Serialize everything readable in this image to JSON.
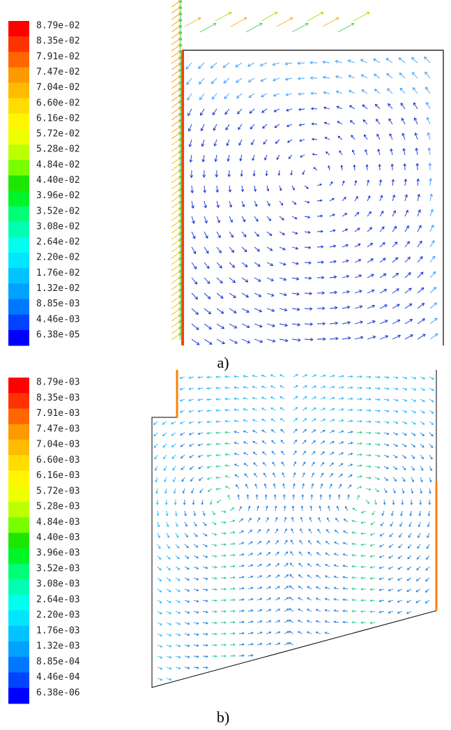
{
  "colorbar_colors": [
    "hsl(0,100%,50%)",
    "hsl(12,100%,50%)",
    "hsl(24,100%,50%)",
    "hsl(36,100%,50%)",
    "hsl(44,100%,50%)",
    "hsl(52,100%,50%)",
    "hsl(58,100%,50%)",
    "hsl(64,100%,50%)",
    "hsl(76,100%,50%)",
    "hsl(92,100%,50%)",
    "hsl(112,100%,45%)",
    "hsl(130,100%,48%)",
    "hsl(148,100%,50%)",
    "hsl(162,100%,50%)",
    "hsl(176,100%,50%)",
    "hsl(186,100%,50%)",
    "hsl(194,100%,50%)",
    "hsl(202,100%,50%)",
    "hsl(212,100%,50%)",
    "hsl(224,100%,50%)",
    "hsl(240,100%,50%)"
  ],
  "panels": [
    {
      "caption": "a)",
      "colorbar_labels": [
        "8.79e-02",
        "8.35e-02",
        "7.91e-02",
        "7.47e-02",
        "7.04e-02",
        "6.60e-02",
        "6.16e-02",
        "5.72e-02",
        "5.28e-02",
        "4.84e-02",
        "4.40e-02",
        "3.96e-02",
        "3.52e-02",
        "3.08e-02",
        "2.64e-02",
        "2.20e-02",
        "1.76e-02",
        "1.32e-02",
        "8.85e-03",
        "4.46e-03",
        "6.38e-05"
      ]
    },
    {
      "caption": "b)",
      "colorbar_labels": [
        "8.79e-03",
        "8.35e-03",
        "7.91e-03",
        "7.47e-03",
        "7.04e-03",
        "6.60e-03",
        "6.16e-03",
        "5.72e-03",
        "5.28e-03",
        "4.84e-03",
        "4.40e-03",
        "3.96e-03",
        "3.52e-03",
        "3.08e-03",
        "2.64e-03",
        "2.20e-03",
        "1.76e-03",
        "1.32e-03",
        "8.85e-04",
        "4.46e-04",
        "6.38e-06"
      ]
    }
  ]
}
